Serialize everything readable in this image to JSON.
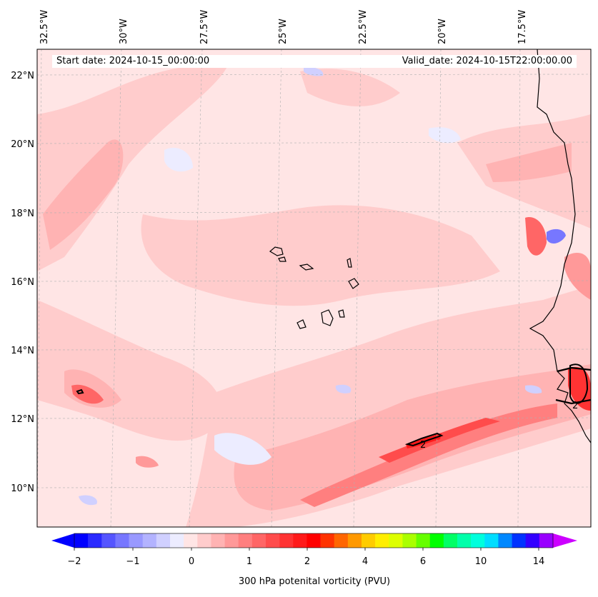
{
  "header": {
    "start_date": "Start date: 2024-10-15_00:00:00",
    "valid_date": "Valid_date: 2024-10-15T22:00:00.00"
  },
  "axes": {
    "lon_labels": [
      "32.5°W",
      "30°W",
      "27.5°W",
      "25°W",
      "22.5°W",
      "20°W",
      "17.5°W"
    ],
    "lat_labels": [
      "22°N",
      "20°N",
      "18°N",
      "16°N",
      "14°N",
      "12°N",
      "10°N"
    ]
  },
  "contour_labels": [
    "2",
    "2"
  ],
  "colorbar": {
    "title": "300 hPa potenital vorticity (PVU)",
    "tick_labels": [
      "−2",
      "−1",
      "0",
      "1",
      "2",
      "4",
      "6",
      "10",
      "14"
    ],
    "colors": [
      "#0000ff",
      "#2a2aff",
      "#5555ff",
      "#7777ff",
      "#9999ff",
      "#b3b3ff",
      "#d0d0ff",
      "#ececff",
      "#ffe5e5",
      "#ffcccc",
      "#ffb3b3",
      "#ff9999",
      "#ff7f7f",
      "#ff6666",
      "#ff4c4c",
      "#ff3333",
      "#ff1a1a",
      "#ff0000",
      "#ff3300",
      "#ff6600",
      "#ff9900",
      "#ffcc00",
      "#ffee00",
      "#ddff00",
      "#aaff00",
      "#66ff00",
      "#00ff00",
      "#00ff66",
      "#00ffaa",
      "#00ffdd",
      "#00ddff",
      "#0088ff",
      "#0033ff",
      "#3300ff",
      "#9900ff"
    ],
    "extend_low_color": "#0000ff",
    "extend_high_color": "#cc00ff"
  }
}
